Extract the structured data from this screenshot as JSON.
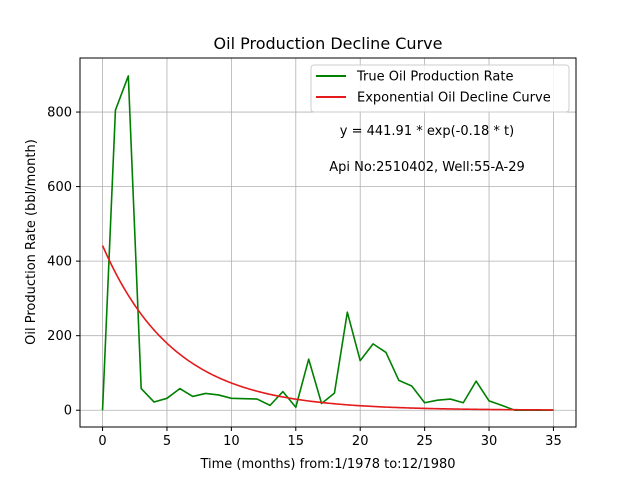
{
  "chart_data": {
    "type": "line",
    "title": "Oil Production Decline Curve",
    "xlabel": "Time (months) from:1/1978 to:12/1980",
    "ylabel": "Oil Production Rate (bbl/month)",
    "xlim": [
      -1.75,
      36.75
    ],
    "ylim": [
      -45,
      945
    ],
    "xticks": [
      0,
      5,
      10,
      15,
      20,
      25,
      30,
      35
    ],
    "yticks": [
      0,
      200,
      400,
      600,
      800
    ],
    "grid": true,
    "legend_position": "top-right",
    "x": [
      0,
      1,
      2,
      3,
      4,
      5,
      6,
      7,
      8,
      9,
      10,
      11,
      12,
      13,
      14,
      15,
      16,
      17,
      18,
      19,
      20,
      21,
      22,
      23,
      24,
      25,
      26,
      27,
      28,
      29,
      30,
      31,
      32,
      33,
      34,
      35
    ],
    "series": [
      {
        "name": "True Oil Production Rate",
        "color": "#008000",
        "values": [
          0,
          805,
          897,
          58,
          22,
          32,
          58,
          37,
          45,
          41,
          32,
          31,
          30,
          13,
          50,
          8,
          137,
          18,
          46,
          263,
          133,
          178,
          155,
          80,
          65,
          20,
          27,
          30,
          20,
          78,
          25,
          13,
          0,
          0,
          0,
          0
        ]
      },
      {
        "name": "Exponential Oil Decline Curve",
        "color": "#e41a1c",
        "formula": {
          "a": 441.91,
          "b": 0.18
        }
      }
    ],
    "annotations": [
      {
        "text": "y = 441.91 * exp(-0.18 * t)"
      },
      {
        "text": "Api No:2510402, Well:55-A-29"
      }
    ]
  }
}
